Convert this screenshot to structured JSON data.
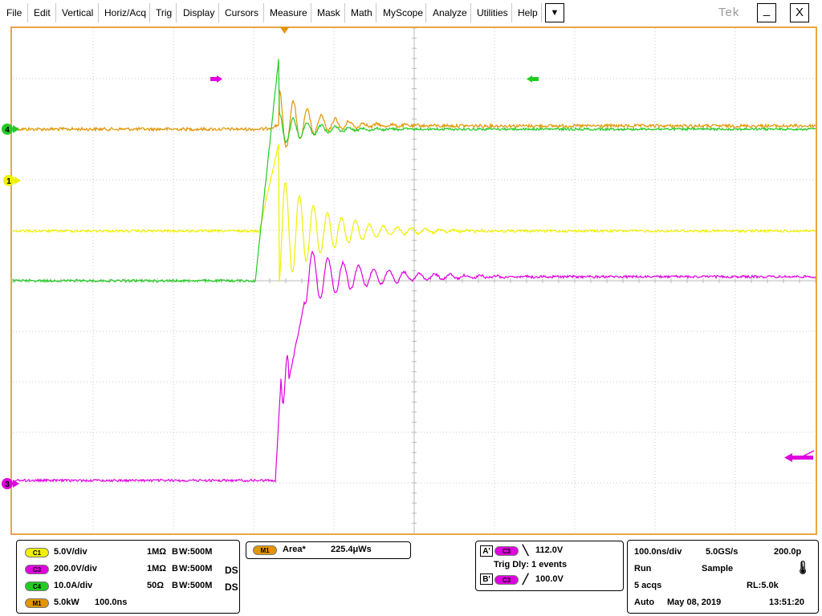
{
  "menu": {
    "items": [
      "File",
      "Edit",
      "Vertical",
      "Horiz/Acq",
      "Trig",
      "Display",
      "Cursors",
      "Measure",
      "Mask",
      "Math",
      "MyScope",
      "Analyze",
      "Utilities",
      "Help"
    ],
    "dropdown_glyph": "▼",
    "brand": "Tek",
    "minimize_glyph": "_",
    "close_glyph": "X"
  },
  "markers": {
    "ch4": "4",
    "ch1": "1",
    "ch3": "3",
    "trigger_icon": "orange-down-triangle",
    "arrow_icon": "arrow-left-icon"
  },
  "colors": {
    "ch1": "#f0f000",
    "ch3": "#e000e0",
    "ch4": "#22cc22",
    "math": "#e39500",
    "frame": "#e8a640",
    "grid": "#c8c8c8"
  },
  "channels": [
    {
      "badge": "C1",
      "scale": "5.0V/div",
      "impedance": "1MΩ",
      "bw_label": "W:500M",
      "bw_prefix": "B",
      "suffix": ""
    },
    {
      "badge": "C3",
      "scale": "200.0V/div",
      "impedance": "1MΩ",
      "bw_label": "W:500M",
      "bw_prefix": "B",
      "suffix": "DS"
    },
    {
      "badge": "C4",
      "scale": "10.0A/div",
      "impedance": "50Ω",
      "bw_label": "W:500M",
      "bw_prefix": "B",
      "suffix": "DS"
    },
    {
      "badge": "M1",
      "scale": "5.0kW",
      "impedance": "100.0ns",
      "bw_label": "",
      "bw_prefix": "",
      "suffix": ""
    }
  ],
  "measurement": {
    "badge": "M1",
    "label": "Area*",
    "value": "225.4μWs"
  },
  "trigger": {
    "a_letter": "A'",
    "a_source": "C3",
    "a_level": "112.0V",
    "delay": "Trig Dly: 1 events",
    "b_letter": "B'",
    "b_source": "C3",
    "b_level": "100.0V"
  },
  "acquisition": {
    "timebase": "100.0ns/div",
    "sample_rate": "5.0GS/s",
    "resolution": "200.0p",
    "state": "Run",
    "mode": "Sample",
    "acqs": "5 acqs",
    "record_length": "RL:5.0k",
    "trigger_mode": "Auto",
    "date": "May 08, 2019",
    "time": "13:51:20"
  }
}
